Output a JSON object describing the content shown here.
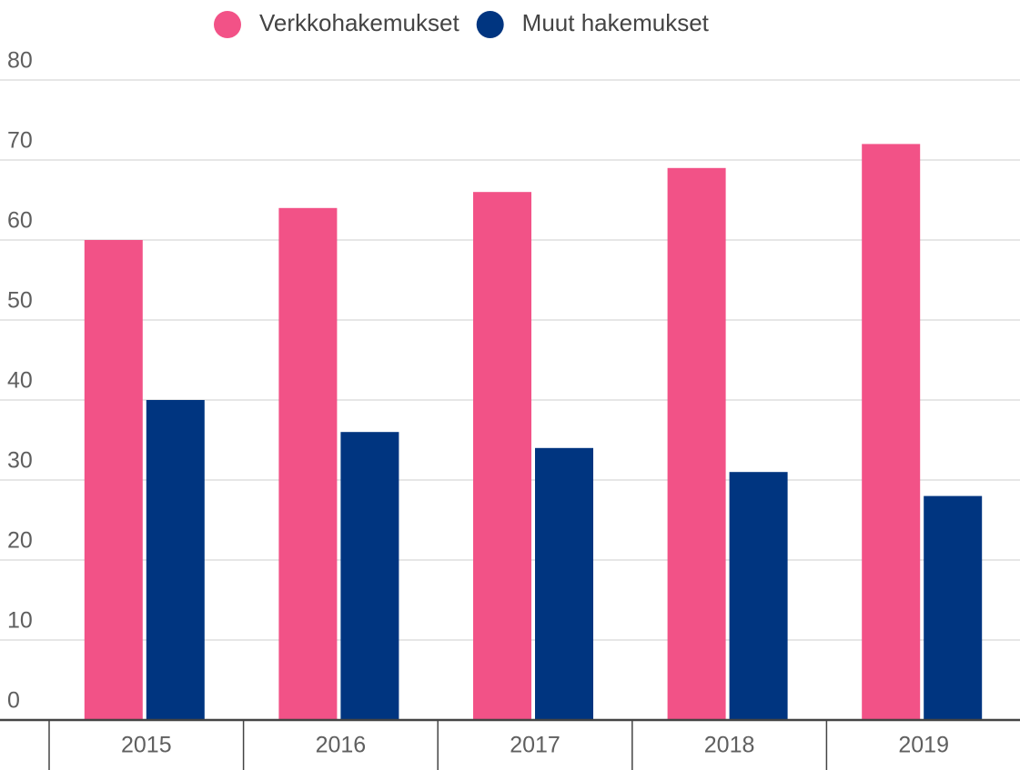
{
  "chart_data": {
    "type": "bar",
    "categories": [
      "2015",
      "2016",
      "2017",
      "2018",
      "2019"
    ],
    "series": [
      {
        "name": "Verkkohakemukset",
        "color": "#f25287",
        "values": [
          60,
          64,
          66,
          69,
          72
        ]
      },
      {
        "name": "Muut hakemukset",
        "color": "#003580",
        "values": [
          40,
          36,
          34,
          31,
          28
        ]
      }
    ],
    "ylim": [
      0,
      80
    ],
    "yticks": [
      0,
      10,
      20,
      30,
      40,
      50,
      60,
      70,
      80
    ],
    "grid": true,
    "legend": "top"
  }
}
